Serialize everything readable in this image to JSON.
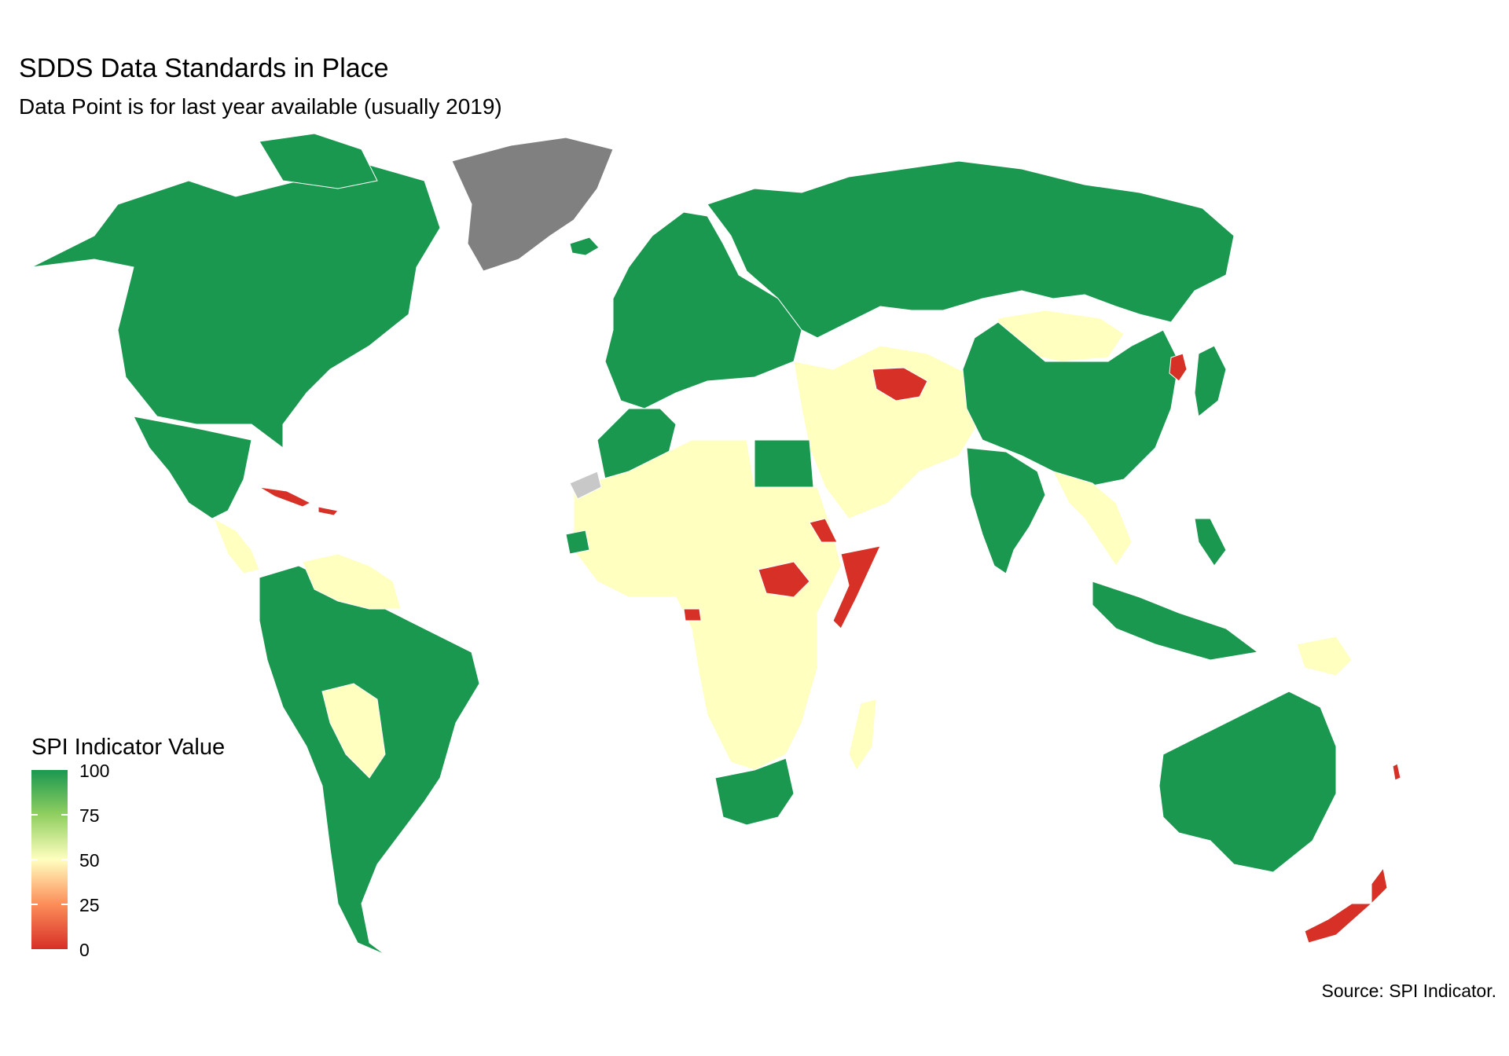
{
  "map": {
    "title": "SDDS Data Standards in Place",
    "subtitle": "Data Point is for last year available (usually 2019)",
    "source": "Source: SPI Indicator.",
    "legend": {
      "title": "SPI Indicator Value",
      "ticks": [
        "100",
        "75",
        "50",
        "25",
        "0"
      ],
      "scale_min": 0,
      "scale_max": 100
    },
    "colors": {
      "high": "#1a9850",
      "mid_high": "#91cf60",
      "mid": "#ffffbf",
      "mid_low": "#fc8d59",
      "low": "#d73027",
      "no_data_greenland": "#808080",
      "no_data": "#c8c8c8",
      "border": "#ffffff"
    },
    "regions": {
      "north_america": 100,
      "mexico_central": 100,
      "central_small": 50,
      "cuba_haiti": 0,
      "south_america": 100,
      "venezuela_guyanas": 50,
      "bolivia_paraguay": 50,
      "greenland": null,
      "iceland": 100,
      "europe": 100,
      "russia": 100,
      "mongolia": 50,
      "china": 100,
      "north_korea": 0,
      "japan": 100,
      "turkmenistan": 0,
      "middle_east_central_asia": 50,
      "india": 100,
      "southeast_asia": 50,
      "indonesia_philippines": 100,
      "png": 50,
      "australia": 100,
      "new_zealand": 0,
      "vanuatu": 0,
      "north_africa_west": 100,
      "egypt": 100,
      "africa_sahel_central": 50,
      "western_sahara": null,
      "eritrea": 0,
      "south_sudan": 0,
      "somalia": 0,
      "senegal": 100,
      "gabon": 0,
      "southern_africa": 100,
      "madagascar": 50
    }
  }
}
